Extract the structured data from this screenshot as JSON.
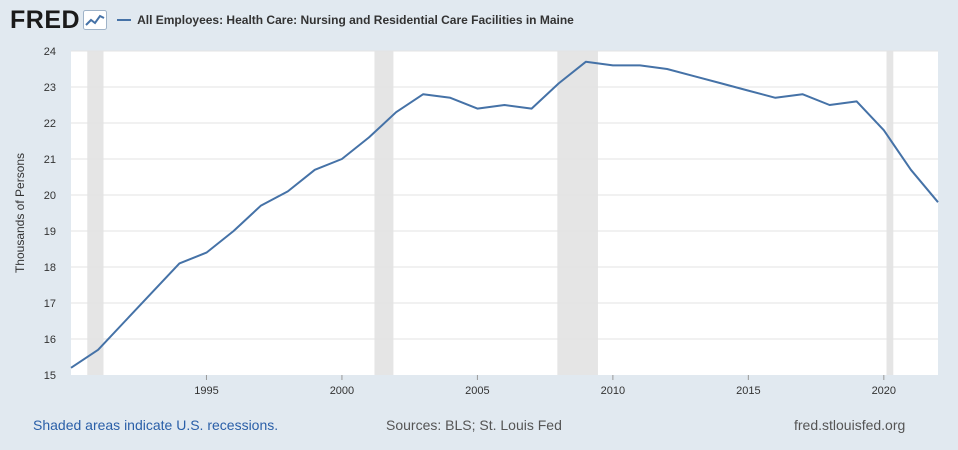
{
  "header": {
    "logo_text": "FRED",
    "title": "All Employees: Health Care: Nursing and Residential Care Facilities in Maine"
  },
  "colors": {
    "background": "#e1e9f0",
    "plot_background": "#ffffff",
    "series_line": "#4572a7",
    "recession_shade": "#e5e5e5",
    "gridline": "#e3e3e3",
    "footer_link": "#2a5fa8"
  },
  "chart_data": {
    "type": "line",
    "title": "All Employees: Health Care: Nursing and Residential Care Facilities in Maine",
    "xlabel": "",
    "ylabel": "Thousands of Persons",
    "xlim": [
      1990,
      2022
    ],
    "ylim": [
      15,
      24
    ],
    "y_ticks": [
      15,
      16,
      17,
      18,
      19,
      20,
      21,
      22,
      23,
      24
    ],
    "x_ticks": [
      1995,
      2000,
      2005,
      2010,
      2015,
      2020
    ],
    "grid": "horizontal",
    "legend": "top-left",
    "recessions": [
      [
        1990.6,
        1991.2
      ],
      [
        2001.2,
        2001.9
      ],
      [
        2007.95,
        2009.45
      ],
      [
        2020.1,
        2020.35
      ]
    ],
    "series": [
      {
        "name": "All Employees: Health Care: Nursing and Residential Care Facilities in Maine",
        "x": [
          1990,
          1991,
          1992,
          1993,
          1994,
          1995,
          1996,
          1997,
          1998,
          1999,
          2000,
          2001,
          2002,
          2003,
          2004,
          2005,
          2006,
          2007,
          2008,
          2009,
          2010,
          2011,
          2012,
          2013,
          2014,
          2015,
          2016,
          2017,
          2018,
          2019,
          2020,
          2021,
          2022
        ],
        "values": [
          15.2,
          15.7,
          16.5,
          17.3,
          18.1,
          18.4,
          19.0,
          19.7,
          20.1,
          20.7,
          21.0,
          21.6,
          22.3,
          22.8,
          22.7,
          22.4,
          22.5,
          22.4,
          23.1,
          23.7,
          23.6,
          23.6,
          23.5,
          23.3,
          23.1,
          22.9,
          22.7,
          22.8,
          22.5,
          22.6,
          21.8,
          20.7,
          19.8
        ]
      }
    ]
  },
  "footer": {
    "recession_note": "Shaded areas indicate U.S. recessions.",
    "sources": "Sources: BLS; St. Louis Fed",
    "site": "fred.stlouisfed.org"
  }
}
